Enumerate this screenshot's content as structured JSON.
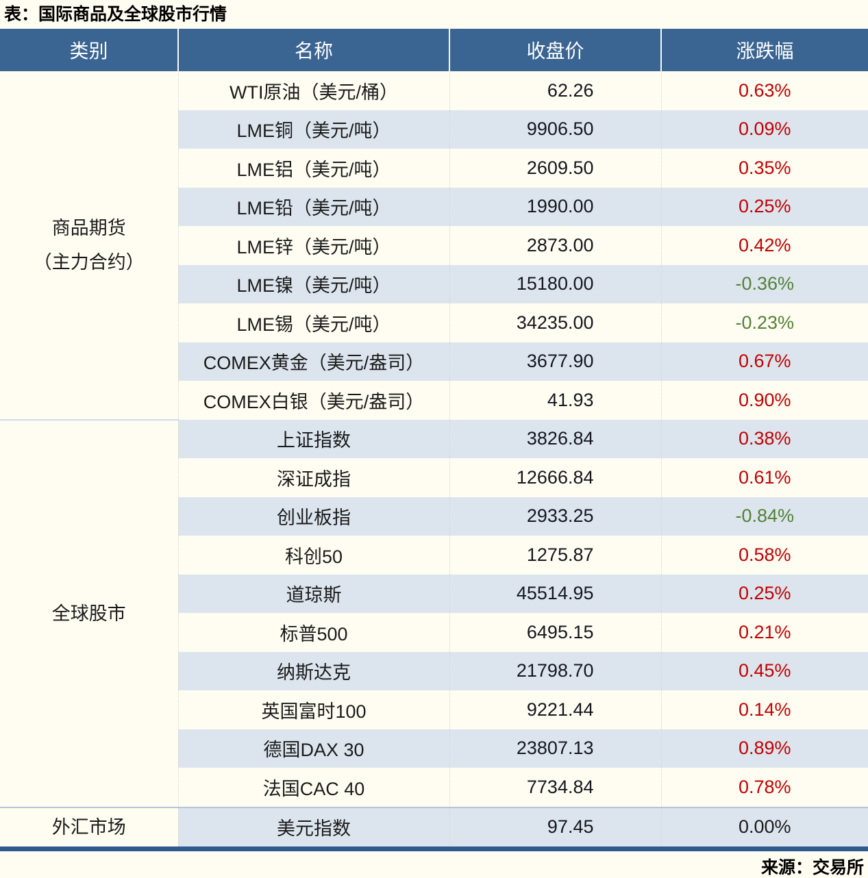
{
  "title": "表：国际商品及全球股市行情",
  "source": "来源：交易所",
  "categories": [
    {
      "lines": [
        "商品期货",
        "（主力合约）"
      ]
    },
    {
      "lines": [
        "全球股市"
      ]
    },
    {
      "lines": [
        "外汇市场"
      ]
    }
  ],
  "colors": {
    "header_bg": "#3a6492",
    "header_text": "#ffffff",
    "stripe_blue": "#dce5ee",
    "stripe_cream": "#fffdf2",
    "up_red": "#c40000",
    "down_green": "#538135",
    "flat_black": "#1a1a1a",
    "bottom_border_blue": "#2e5a8e",
    "group_divider_blue": "#b3c6da"
  },
  "chart_data": {
    "type": "table",
    "title": "国际商品及全球股市行情",
    "columns": [
      "类别",
      "名称",
      "收盘价",
      "涨跌幅"
    ],
    "groups": [
      {
        "category": "商品期货（主力合约）",
        "rows": [
          [
            "WTI原油（美元/桶）",
            "62.26",
            "0.63%"
          ],
          [
            "LME铜（美元/吨）",
            "9906.50",
            "0.09%"
          ],
          [
            "LME铝（美元/吨）",
            "2609.50",
            "0.35%"
          ],
          [
            "LME铅（美元/吨）",
            "1990.00",
            "0.25%"
          ],
          [
            "LME锌（美元/吨）",
            "2873.00",
            "0.42%"
          ],
          [
            "LME镍（美元/吨）",
            "15180.00",
            "-0.36%"
          ],
          [
            "LME锡（美元/吨）",
            "34235.00",
            "-0.23%"
          ],
          [
            "COMEX黄金（美元/盎司）",
            "3677.90",
            "0.67%"
          ],
          [
            "COMEX白银（美元/盎司）",
            "41.93",
            "0.90%"
          ]
        ]
      },
      {
        "category": "全球股市",
        "rows": [
          [
            "上证指数",
            "3826.84",
            "0.38%"
          ],
          [
            "深证成指",
            "12666.84",
            "0.61%"
          ],
          [
            "创业板指",
            "2933.25",
            "-0.84%"
          ],
          [
            "科创50",
            "1275.87",
            "0.58%"
          ],
          [
            "道琼斯",
            "45514.95",
            "0.25%"
          ],
          [
            "标普500",
            "6495.15",
            "0.21%"
          ],
          [
            "纳斯达克",
            "21798.70",
            "0.45%"
          ],
          [
            "英国富时100",
            "9221.44",
            "0.14%"
          ],
          [
            "德国DAX 30",
            "23807.13",
            "0.89%"
          ],
          [
            "法国CAC 40",
            "7734.84",
            "0.78%"
          ]
        ]
      },
      {
        "category": "外汇市场",
        "rows": [
          [
            "美元指数",
            "97.45",
            "0.00%"
          ]
        ]
      }
    ]
  }
}
